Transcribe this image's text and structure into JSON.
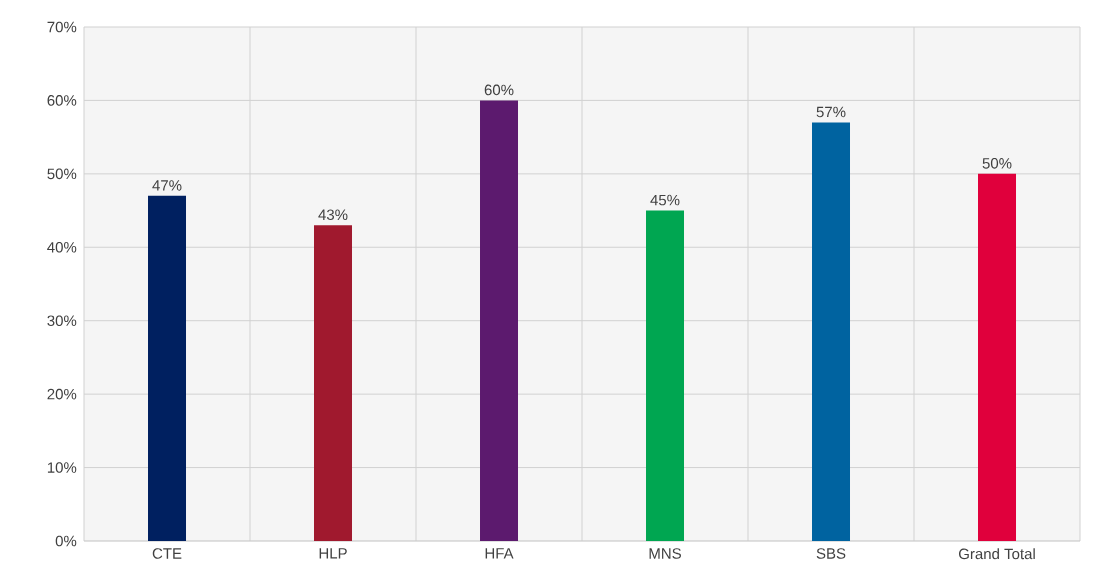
{
  "chart_data": {
    "type": "bar",
    "categories": [
      "CTE",
      "HLP",
      "HFA",
      "MNS",
      "SBS",
      "Grand Total"
    ],
    "values": [
      47,
      43,
      60,
      45,
      57,
      50
    ],
    "colors": [
      "#002060",
      "#a0192e",
      "#5c1a6e",
      "#00a651",
      "#0063a0",
      "#e0003c"
    ],
    "value_labels": [
      "47%",
      "43%",
      "60%",
      "45%",
      "57%",
      "50%"
    ],
    "ylim": [
      0,
      70
    ],
    "yticks": [
      {
        "value": 0,
        "label": "0%"
      },
      {
        "value": 10,
        "label": "10%"
      },
      {
        "value": 20,
        "label": "20%"
      },
      {
        "value": 30,
        "label": "30%"
      },
      {
        "value": 40,
        "label": "40%"
      },
      {
        "value": 50,
        "label": "50%"
      },
      {
        "value": 60,
        "label": "60%"
      },
      {
        "value": 70,
        "label": "70%"
      }
    ],
    "grid": true
  }
}
